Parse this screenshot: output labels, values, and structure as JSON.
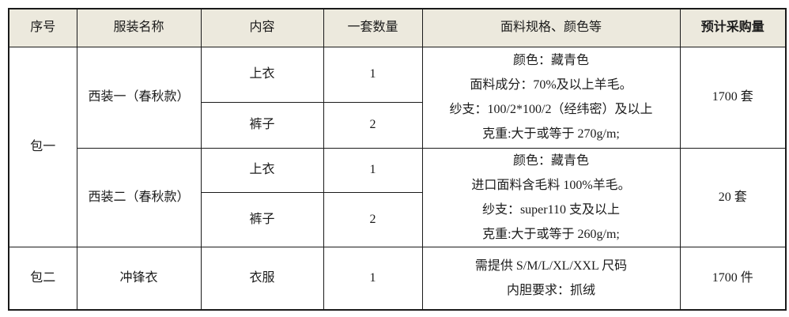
{
  "headers": [
    "序号",
    "服装名称",
    "内容",
    "一套数量",
    "面料规格、颜色等",
    "预计采购量"
  ],
  "packages": [
    {
      "id": "包一",
      "garments": [
        {
          "name": "西装一（春秋款）",
          "items": [
            {
              "content": "上衣",
              "qty": "1"
            },
            {
              "content": "裤子",
              "qty": "2"
            }
          ],
          "spec_lines": [
            "颜色：藏青色",
            "面料成分：70%及以上羊毛。",
            "纱支：100/2*100/2（经纬密）及以上",
            "克重:大于或等于 270g/m;"
          ],
          "purchase": "1700 套"
        },
        {
          "name": "西装二（春秋款）",
          "items": [
            {
              "content": "上衣",
              "qty": "1"
            },
            {
              "content": "裤子",
              "qty": "2"
            }
          ],
          "spec_lines": [
            "颜色：藏青色",
            "进口面料含毛料 100%羊毛。",
            "纱支：super110 支及以上",
            "克重:大于或等于 260g/m;"
          ],
          "purchase": "20 套"
        }
      ]
    },
    {
      "id": "包二",
      "garments": [
        {
          "name": "冲锋衣",
          "items": [
            {
              "content": "衣服",
              "qty": "1"
            }
          ],
          "spec_lines": [
            "需提供 S/M/L/XL/XXL 尺码",
            "内胆要求：抓绒"
          ],
          "purchase": "1700 件"
        }
      ]
    }
  ],
  "colors": {
    "header_bg": "#ece9dd",
    "border": "#1a1a1a",
    "text": "#1b1b1b"
  }
}
